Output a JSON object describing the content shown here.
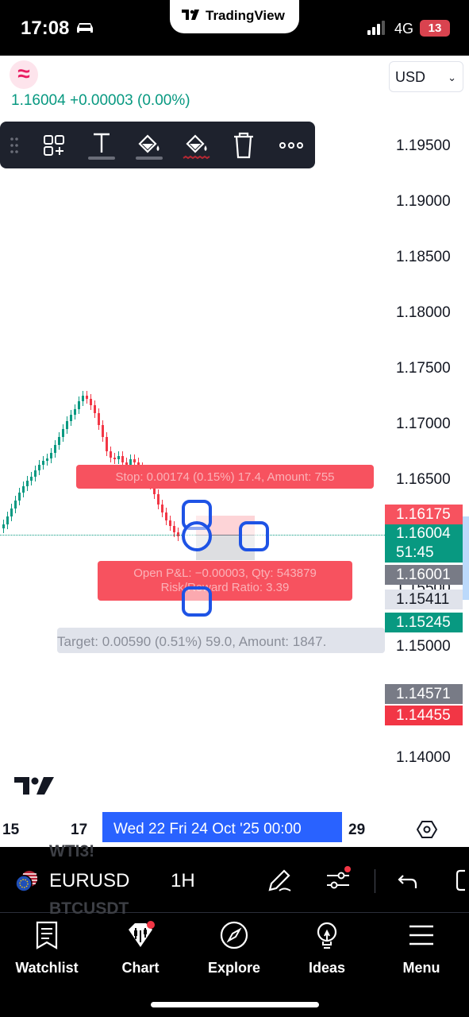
{
  "status_bar": {
    "time": "17:08",
    "center_app": "TradingView",
    "network": "4G",
    "battery": "13",
    "icons": [
      "car-icon",
      "signal-icon",
      "battery-icon"
    ]
  },
  "header": {
    "symbol_logo_glyph": "≈",
    "last_price": "1.16004",
    "change": "+0.00003",
    "change_pct": "(0.00%)",
    "currency": "USD"
  },
  "drawing_toolbar": {
    "tools": [
      "drag-handle-icon",
      "object-tree-icon",
      "text-icon",
      "fill-color-icon",
      "line-color-icon",
      "trash-icon",
      "more-icon"
    ]
  },
  "price_axis": {
    "labels": [
      "1.19500",
      "1.19000",
      "1.18500",
      "1.18000",
      "1.17500",
      "1.17000",
      "1.16500",
      "1.15500",
      "1.15000",
      "1.14000"
    ]
  },
  "price_tags": {
    "stop": "1.16175",
    "current": "1.16004",
    "countdown": "51:45",
    "entry": "1.16001",
    "light": "1.15411",
    "target": "1.15245",
    "gray_low": "1.14571",
    "red_low": "1.14455"
  },
  "position_overlay": {
    "stop_text": "Stop: 0.00174 (0.15%) 17.4, Amount: 755",
    "open_text_1": "Open P&L: −0.00003, Qty: 543879",
    "open_text_2": "Risk/Reward Ratio: 3.39",
    "target_text": "Target: 0.00590 (0.51%) 59.0, Amount: 1847."
  },
  "time_axis": {
    "left_labels": [
      "15",
      "17"
    ],
    "range_label": "Wed 22   Fri 24 Oct '25   00:00",
    "right_label": "29"
  },
  "symbol_bar": {
    "symbol": "EURUSD",
    "interval": "1H",
    "ghost_above": "WTI3!",
    "ghost_below": "BTCUSDT"
  },
  "bottom_nav": [
    {
      "label": "Watchlist",
      "icon": "watchlist-icon"
    },
    {
      "label": "Chart",
      "icon": "chart-icon"
    },
    {
      "label": "Explore",
      "icon": "compass-icon"
    },
    {
      "label": "Ideas",
      "icon": "lightbulb-icon"
    },
    {
      "label": "Menu",
      "icon": "hamburger-icon"
    }
  ],
  "colors": {
    "up": "#089981",
    "down": "#f23645",
    "accent": "#2962ff",
    "handle": "#1e53e5",
    "stop_zone": "#f7525f",
    "toolbar": "#1e222d"
  }
}
